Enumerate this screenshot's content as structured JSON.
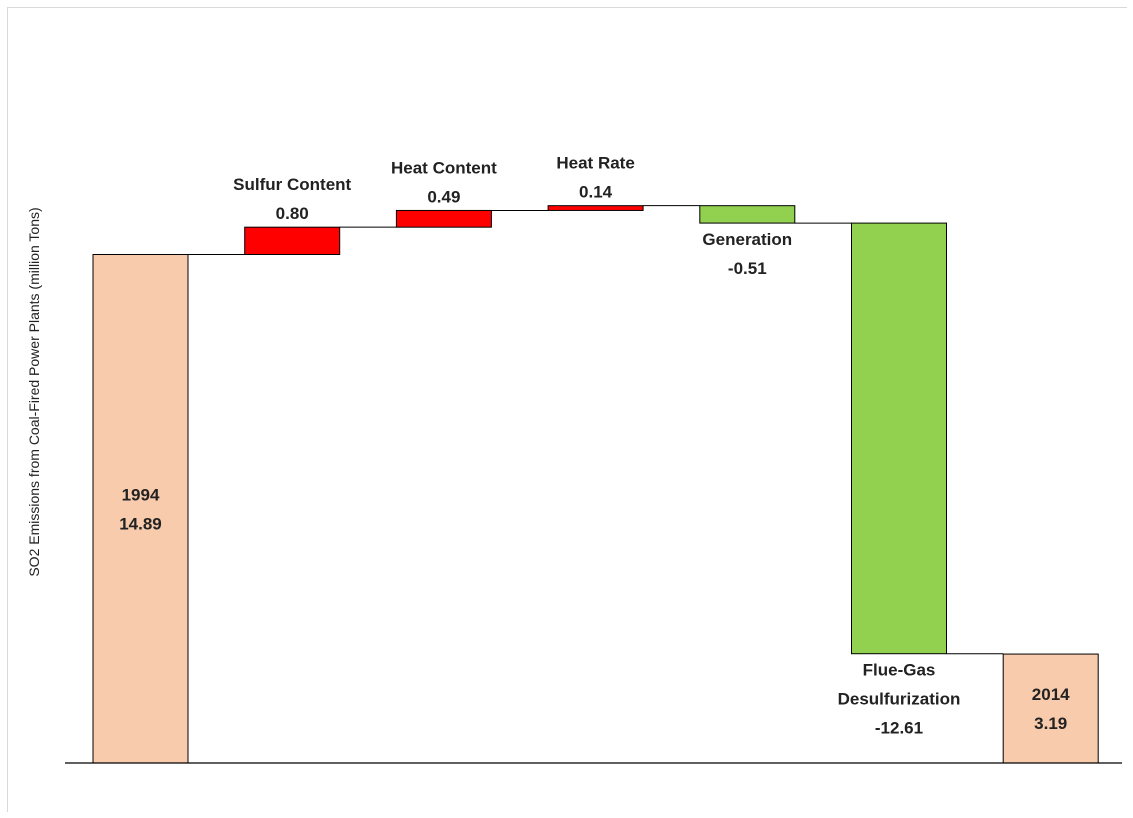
{
  "chart_data": {
    "type": "waterfall",
    "ylabel": "SO2 Emissions from Coal-Fired  Power Plants (million Tons)",
    "ylim": [
      0,
      20
    ],
    "grid": false,
    "legend": "none",
    "bars": [
      {
        "kind": "total",
        "label_lines": [
          "1994",
          "14.89"
        ],
        "value": 14.89,
        "color": "#f8cbad"
      },
      {
        "kind": "delta",
        "label_lines": [
          "Sulfur Content",
          "0.80"
        ],
        "value": 0.8,
        "color": "#ff0000"
      },
      {
        "kind": "delta",
        "label_lines": [
          "Heat Content",
          "0.49"
        ],
        "value": 0.49,
        "color": "#ff0000"
      },
      {
        "kind": "delta",
        "label_lines": [
          "Heat Rate",
          "0.14"
        ],
        "value": 0.14,
        "color": "#ff0000"
      },
      {
        "kind": "delta",
        "label_lines": [
          "Generation",
          "-0.51"
        ],
        "value": -0.51,
        "color": "#92d050"
      },
      {
        "kind": "delta",
        "label_lines": [
          "Flue-Gas",
          "Desulfurization",
          "-12.61"
        ],
        "value": -12.61,
        "color": "#92d050"
      },
      {
        "kind": "total",
        "label_lines": [
          "2014",
          "3.19"
        ],
        "value": 3.19,
        "color": "#f8cbad"
      }
    ]
  }
}
